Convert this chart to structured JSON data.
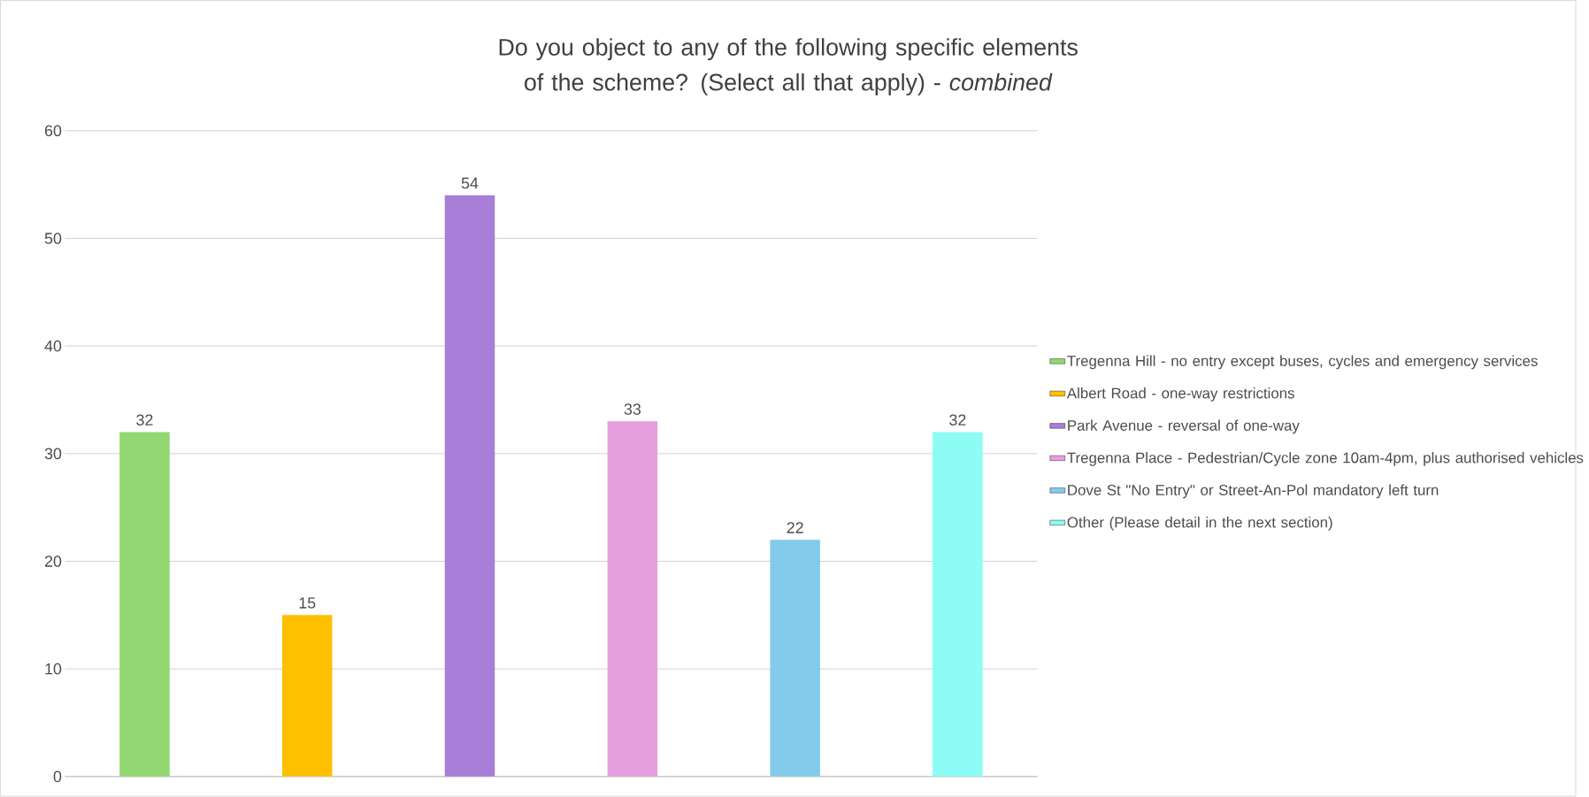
{
  "chart_data": {
    "type": "bar",
    "title": "Do you object to any of the following specific elements of the scheme? (Select all that apply) - *combined*",
    "categories": [
      null
    ],
    "series": [
      {
        "name": "Tregenna Hill - no entry except buses, cycles and emergency services",
        "color": "#92d872",
        "values": [
          32
        ],
        "value_labels": [
          "32"
        ]
      },
      {
        "name": "Albert Road - one-way restrictions",
        "color": "#ffc000",
        "values": [
          15
        ],
        "value_labels": [
          "15"
        ]
      },
      {
        "name": "Park Avenue - reversal of one-way",
        "color": "#a87ed8",
        "values": [
          54
        ],
        "value_labels": [
          "54"
        ]
      },
      {
        "name": "Tregenna Place - Pedestrian/Cycle zone 10am-4pm, plus authorised vehicles",
        "color": "#e59edd",
        "values": [
          33
        ],
        "value_labels": [
          "33"
        ]
      },
      {
        "name": "Dove St \"No Entry\" or Street-An-Pol mandatory left turn",
        "color": "#83cbeb",
        "values": [
          22
        ],
        "value_labels": [
          "22"
        ]
      },
      {
        "name": "Other (Please detail in the next section)",
        "color": "#8cfcf4",
        "values": [
          32
        ],
        "value_labels": [
          "32"
        ]
      }
    ],
    "ylim": [
      0,
      60
    ],
    "yticks": [
      0,
      10,
      20,
      30,
      40,
      50,
      60
    ],
    "grid": "y",
    "legend": "right"
  }
}
